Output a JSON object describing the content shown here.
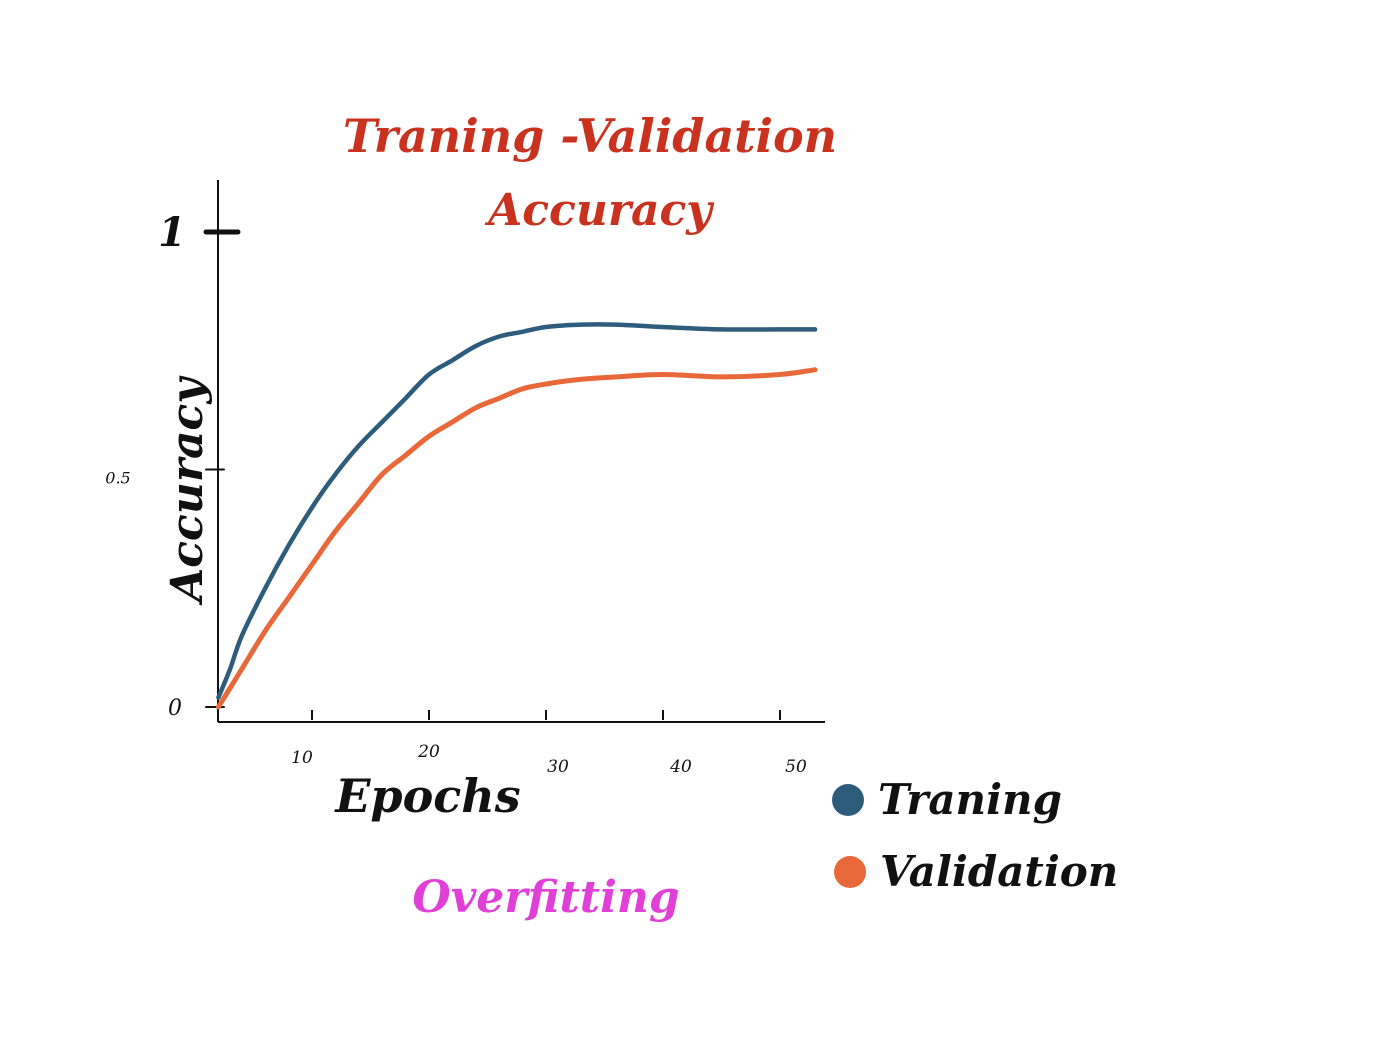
{
  "chart_data": {
    "type": "line",
    "title": "Traning -Validation Accuracy",
    "xlabel": "Epochs",
    "ylabel": "Accuracy",
    "annotation": "Overfitting",
    "xlim": [
      1,
      55
    ],
    "ylim": [
      0,
      1.1
    ],
    "x_ticks": [
      10,
      20,
      30,
      40,
      50
    ],
    "y_ticks": [
      {
        "value": 0,
        "label": "0"
      },
      {
        "value": 0.5,
        "label": "0.5"
      },
      {
        "value": 1,
        "label": "1"
      }
    ],
    "grid": false,
    "legend_position": "bottom-right",
    "x": [
      2,
      3,
      4,
      6,
      8,
      10,
      12,
      14,
      16,
      18,
      20,
      22,
      24,
      26,
      28,
      30,
      33,
      36,
      40,
      45,
      50,
      53
    ],
    "series": [
      {
        "name": "Traning",
        "color": "#2e5c7d",
        "values": [
          0.02,
          0.08,
          0.15,
          0.25,
          0.34,
          0.42,
          0.49,
          0.55,
          0.6,
          0.65,
          0.7,
          0.73,
          0.76,
          0.78,
          0.79,
          0.8,
          0.805,
          0.805,
          0.8,
          0.795,
          0.795,
          0.795
        ]
      },
      {
        "name": "Validation",
        "color": "#e8683a",
        "values": [
          0.0,
          0.04,
          0.08,
          0.16,
          0.23,
          0.3,
          0.37,
          0.43,
          0.49,
          0.53,
          0.57,
          0.6,
          0.63,
          0.65,
          0.67,
          0.68,
          0.69,
          0.695,
          0.7,
          0.695,
          0.7,
          0.71
        ]
      }
    ],
    "title_color": "#c8321e",
    "annotation_color": "#e040d8"
  }
}
